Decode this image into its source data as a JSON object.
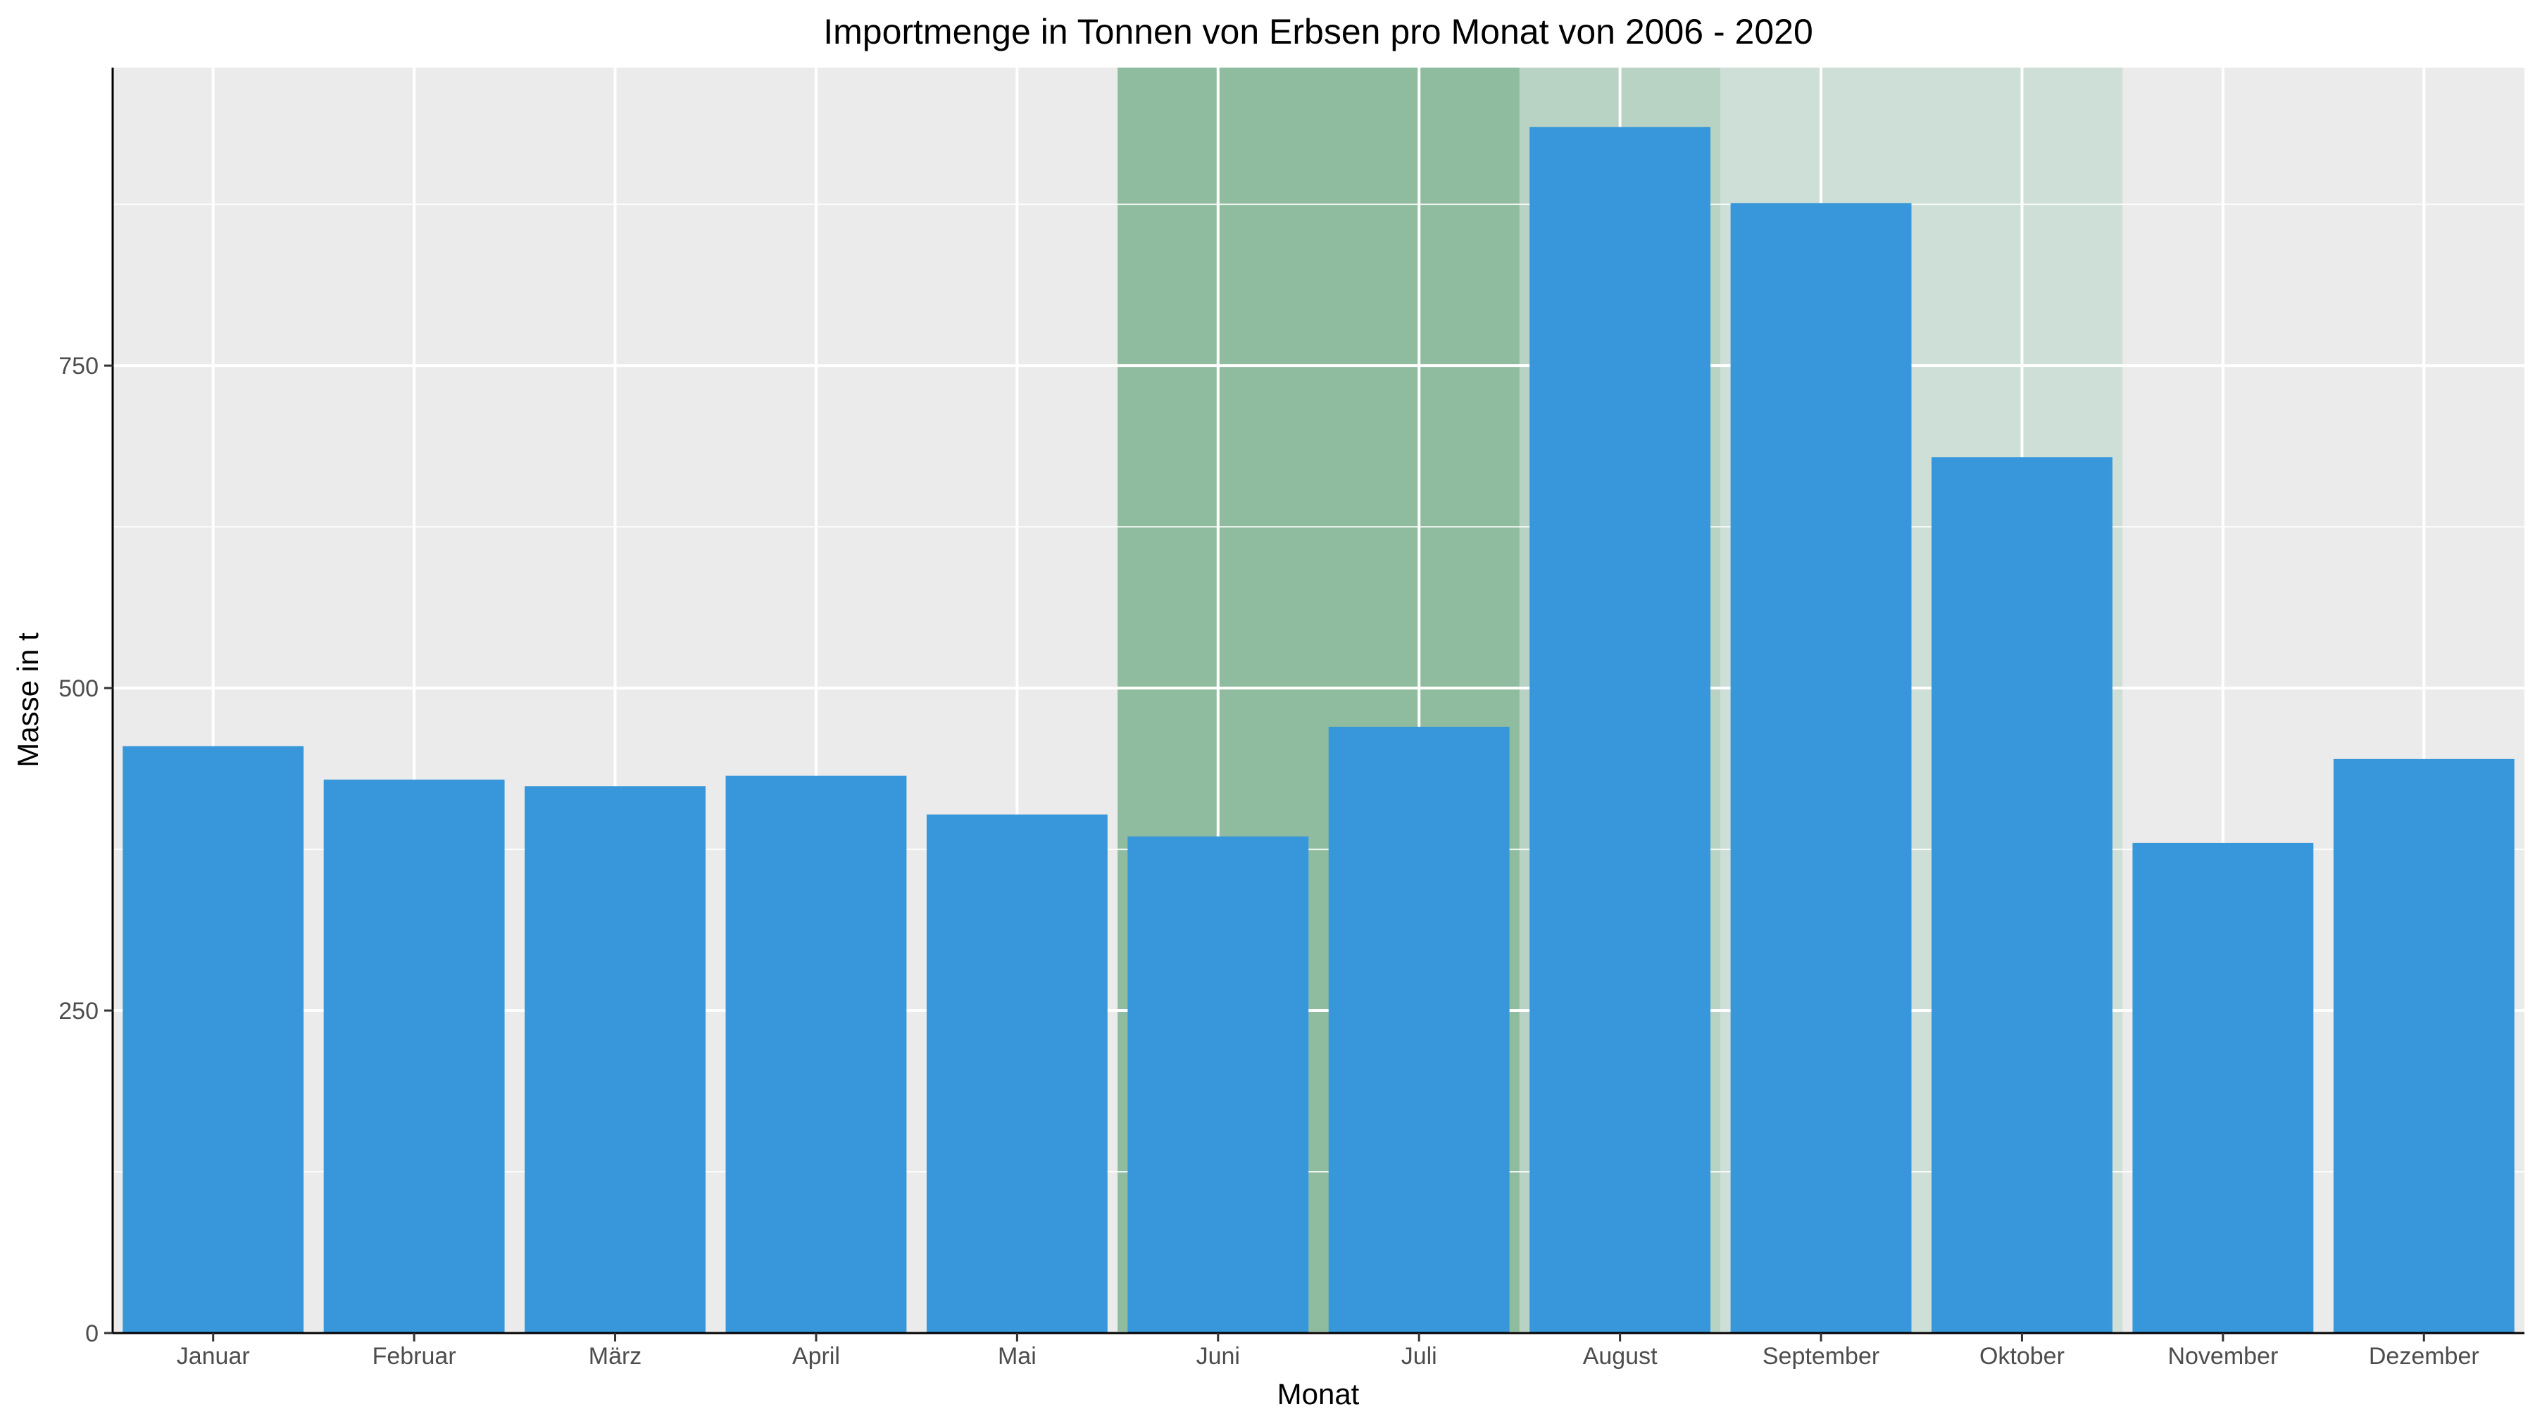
{
  "chart_data": {
    "type": "bar",
    "title": "Importmenge in Tonnen von Erbsen pro Monat von 2006 - 2020",
    "xlabel": "Monat",
    "ylabel": "Masse in t",
    "categories": [
      "Januar",
      "Februar",
      "März",
      "April",
      "Mai",
      "Juni",
      "Juli",
      "August",
      "September",
      "Oktober",
      "November",
      "Dezember"
    ],
    "values": [
      455,
      429,
      424,
      432,
      402,
      385,
      470,
      935,
      876,
      679,
      380,
      445
    ],
    "ylim": [
      0,
      981
    ],
    "yticks": [
      0,
      250,
      500,
      750
    ],
    "grid": true,
    "bar_color": "#3797da",
    "panel_background": "#ebebeb",
    "highlight_regions": [
      {
        "from": "Juni",
        "to": "Juli",
        "color": "#8fbc9f"
      },
      {
        "from": "August",
        "to": "August",
        "color": "#b8d2c4"
      },
      {
        "from": "September",
        "to": "Oktober",
        "color": "#cddfd6"
      }
    ]
  }
}
